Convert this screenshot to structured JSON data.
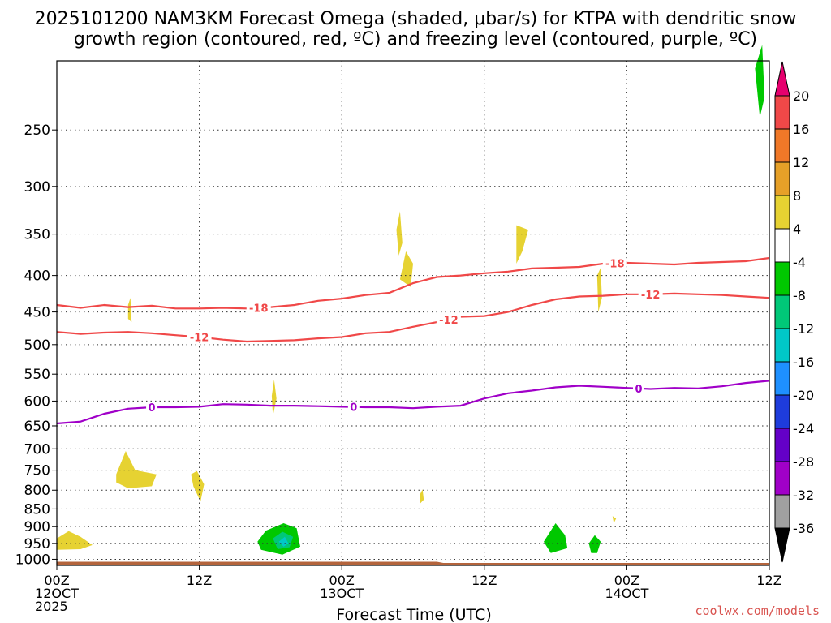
{
  "title_line1": "2025101200 NAM3KM Forecast Omega (shaded, μbar/s) for KTPA with dendritic snow",
  "title_line2": "growth region (contoured, red, ºC) and freezing level (contoured, purple, ºC)",
  "credit": "coolwx.com/models",
  "chart_data": {
    "type": "time-height-cross-section",
    "xlabel": "Forecast Time (UTC)",
    "x_ticks": [
      {
        "hour": 0,
        "label": "00Z",
        "sub": "12OCT",
        "sub2": "2025"
      },
      {
        "hour": 12,
        "label": "12Z",
        "sub": "",
        "sub2": ""
      },
      {
        "hour": 24,
        "label": "00Z",
        "sub": "13OCT",
        "sub2": ""
      },
      {
        "hour": 36,
        "label": "12Z",
        "sub": "",
        "sub2": ""
      },
      {
        "hour": 48,
        "label": "00Z",
        "sub": "14OCT",
        "sub2": ""
      },
      {
        "hour": 60,
        "label": "12Z",
        "sub": "",
        "sub2": ""
      }
    ],
    "xlim": [
      0,
      60
    ],
    "ylabel": "",
    "y_axis": "pressure (hPa), inverted",
    "y_ticks": [
      250,
      300,
      350,
      400,
      450,
      500,
      550,
      600,
      650,
      700,
      750,
      800,
      850,
      900,
      950,
      1000
    ],
    "ylim": [
      1020,
      200
    ],
    "grid": true,
    "colorbar": {
      "ticks": [
        20,
        16,
        12,
        8,
        4,
        -4,
        -8,
        -12,
        -16,
        -20,
        -24,
        -28,
        -32,
        -36
      ],
      "colors": [
        "#e6006e",
        "#f04848",
        "#f07828",
        "#e6a028",
        "#e6d232",
        "#ffffff",
        "#00c800",
        "#00c878",
        "#00c8c8",
        "#1e90ff",
        "#1e3cdc",
        "#6400c8",
        "#a000c8",
        "#a0a0a0",
        "#000000"
      ],
      "placement": "right"
    },
    "contours": [
      {
        "name": "-18",
        "color": "#f04848",
        "labels": [
          {
            "hour": 17,
            "label": "-18"
          },
          {
            "hour": 47,
            "label": "-18"
          }
        ],
        "points": [
          [
            0,
            440
          ],
          [
            2,
            444
          ],
          [
            4,
            440
          ],
          [
            6,
            443
          ],
          [
            8,
            441
          ],
          [
            10,
            445
          ],
          [
            12,
            445
          ],
          [
            14,
            444
          ],
          [
            16,
            445
          ],
          [
            18,
            443
          ],
          [
            20,
            440
          ],
          [
            22,
            434
          ],
          [
            24,
            431
          ],
          [
            26,
            426
          ],
          [
            28,
            423
          ],
          [
            30,
            410
          ],
          [
            32,
            402
          ],
          [
            34,
            400
          ],
          [
            36,
            397
          ],
          [
            38,
            395
          ],
          [
            40,
            391
          ],
          [
            42,
            390
          ],
          [
            44,
            389
          ],
          [
            46,
            385
          ],
          [
            48,
            384
          ],
          [
            50,
            385
          ],
          [
            52,
            386
          ],
          [
            54,
            384
          ],
          [
            56,
            383
          ],
          [
            58,
            382
          ],
          [
            60,
            378
          ]
        ]
      },
      {
        "name": "-12",
        "color": "#f04848",
        "labels": [
          {
            "hour": 12,
            "label": "-12"
          },
          {
            "hour": 33,
            "label": "-12"
          },
          {
            "hour": 50,
            "label": "-12"
          }
        ],
        "points": [
          [
            0,
            480
          ],
          [
            2,
            483
          ],
          [
            4,
            481
          ],
          [
            6,
            480
          ],
          [
            8,
            482
          ],
          [
            10,
            485
          ],
          [
            12,
            488
          ],
          [
            14,
            492
          ],
          [
            16,
            495
          ],
          [
            18,
            494
          ],
          [
            20,
            493
          ],
          [
            22,
            490
          ],
          [
            24,
            488
          ],
          [
            26,
            482
          ],
          [
            28,
            480
          ],
          [
            30,
            472
          ],
          [
            32,
            465
          ],
          [
            34,
            457
          ],
          [
            36,
            456
          ],
          [
            38,
            450
          ],
          [
            40,
            440
          ],
          [
            42,
            432
          ],
          [
            44,
            428
          ],
          [
            46,
            427
          ],
          [
            48,
            425
          ],
          [
            50,
            425
          ],
          [
            52,
            424
          ],
          [
            54,
            425
          ],
          [
            56,
            426
          ],
          [
            58,
            428
          ],
          [
            60,
            430
          ]
        ]
      },
      {
        "name": "0",
        "color": "#a000c8",
        "labels": [
          {
            "hour": 8,
            "label": "0"
          },
          {
            "hour": 25,
            "label": "0"
          },
          {
            "hour": 49,
            "label": "0"
          }
        ],
        "points": [
          [
            0,
            645
          ],
          [
            2,
            641
          ],
          [
            4,
            625
          ],
          [
            6,
            615
          ],
          [
            8,
            612
          ],
          [
            10,
            612
          ],
          [
            12,
            611
          ],
          [
            14,
            606
          ],
          [
            16,
            607
          ],
          [
            18,
            609
          ],
          [
            20,
            609
          ],
          [
            22,
            610
          ],
          [
            24,
            611
          ],
          [
            26,
            612
          ],
          [
            28,
            612
          ],
          [
            30,
            614
          ],
          [
            32,
            611
          ],
          [
            34,
            609
          ],
          [
            36,
            595
          ],
          [
            38,
            585
          ],
          [
            40,
            580
          ],
          [
            42,
            574
          ],
          [
            44,
            571
          ],
          [
            46,
            573
          ],
          [
            48,
            575
          ],
          [
            50,
            577
          ],
          [
            52,
            575
          ],
          [
            54,
            576
          ],
          [
            56,
            572
          ],
          [
            58,
            566
          ],
          [
            60,
            562
          ]
        ]
      }
    ],
    "omega_shaded": [
      {
        "value": 4,
        "color": "#e6d232",
        "region": [
          [
            0,
            960
          ],
          [
            0,
            935
          ],
          [
            1,
            913
          ],
          [
            2,
            930
          ],
          [
            3,
            955
          ],
          [
            2,
            968
          ],
          [
            0,
            970
          ]
        ]
      },
      {
        "value": 4,
        "color": "#e6d232",
        "region": [
          [
            5,
            760
          ],
          [
            5.8,
            705
          ],
          [
            6.6,
            750
          ],
          [
            8.4,
            760
          ],
          [
            8,
            790
          ],
          [
            6,
            795
          ],
          [
            5,
            780
          ]
        ]
      },
      {
        "value": 4,
        "color": "#e6d232",
        "region": [
          [
            11.3,
            760
          ],
          [
            11.8,
            752
          ],
          [
            12.4,
            785
          ],
          [
            12.1,
            830
          ],
          [
            11.5,
            790
          ]
        ]
      },
      {
        "value": 4,
        "color": "#e6d232",
        "region": [
          [
            6,
            440
          ],
          [
            6.2,
            430
          ],
          [
            6.3,
            465
          ],
          [
            6,
            460
          ]
        ]
      },
      {
        "value": 4,
        "color": "#e6d232",
        "region": [
          [
            18.1,
            590
          ],
          [
            18.3,
            560
          ],
          [
            18.5,
            595
          ],
          [
            18.2,
            630
          ]
        ]
      },
      {
        "value": 4,
        "color": "#e6d232",
        "region": [
          [
            28.6,
            345
          ],
          [
            28.9,
            325
          ],
          [
            29.1,
            360
          ],
          [
            28.8,
            375
          ]
        ]
      },
      {
        "value": 4,
        "color": "#e6d232",
        "region": [
          [
            29.4,
            370
          ],
          [
            30,
            385
          ],
          [
            29.8,
            415
          ],
          [
            28.9,
            405
          ]
        ]
      },
      {
        "value": 4,
        "color": "#e6d232",
        "region": [
          [
            30.6,
            810
          ],
          [
            30.8,
            798
          ],
          [
            30.9,
            825
          ],
          [
            30.6,
            835
          ]
        ]
      },
      {
        "value": 4,
        "color": "#e6d232",
        "region": [
          [
            38.7,
            340
          ],
          [
            39.7,
            345
          ],
          [
            39.2,
            370
          ],
          [
            38.7,
            385
          ]
        ]
      },
      {
        "value": 4,
        "color": "#e6d232",
        "region": [
          [
            45.5,
            400
          ],
          [
            45.8,
            390
          ],
          [
            45.9,
            430
          ],
          [
            45.6,
            450
          ]
        ]
      },
      {
        "value": 4,
        "color": "#e6d232",
        "region": [
          [
            46.8,
            870
          ],
          [
            47.1,
            877
          ],
          [
            46.9,
            890
          ]
        ]
      },
      {
        "value": -4,
        "color": "#00c800",
        "region": [
          [
            16.9,
            945
          ],
          [
            17.6,
            912
          ],
          [
            19.1,
            890
          ],
          [
            20.2,
            905
          ],
          [
            20.5,
            960
          ],
          [
            19,
            985
          ],
          [
            17.2,
            970
          ]
        ]
      },
      {
        "value": -8,
        "color": "#00c878",
        "region": [
          [
            18.2,
            935
          ],
          [
            19,
            915
          ],
          [
            19.9,
            930
          ],
          [
            19.6,
            962
          ],
          [
            18.6,
            968
          ]
        ]
      },
      {
        "value": -12,
        "color": "#00c8c8",
        "region": [
          [
            18.7,
            945
          ],
          [
            19.2,
            930
          ],
          [
            19.5,
            950
          ],
          [
            19.1,
            960
          ]
        ]
      },
      {
        "value": -4,
        "color": "#00c800",
        "region": [
          [
            41,
            945
          ],
          [
            42,
            890
          ],
          [
            42.8,
            925
          ],
          [
            43,
            965
          ],
          [
            41.6,
            980
          ]
        ]
      },
      {
        "value": -4,
        "color": "#00c800",
        "region": [
          [
            44.8,
            950
          ],
          [
            45.3,
            925
          ],
          [
            45.8,
            945
          ],
          [
            45.5,
            980
          ],
          [
            45,
            980
          ]
        ]
      },
      {
        "value": -4,
        "color": "#00c800",
        "region": [
          [
            58.8,
            205
          ],
          [
            59.4,
            190
          ],
          [
            59.6,
            225
          ],
          [
            59.2,
            240
          ]
        ]
      }
    ],
    "terrain": {
      "color": "#b4643c",
      "top_hpa_left": 1008,
      "top_hpa_right": 1012,
      "break_hour": 32
    }
  }
}
